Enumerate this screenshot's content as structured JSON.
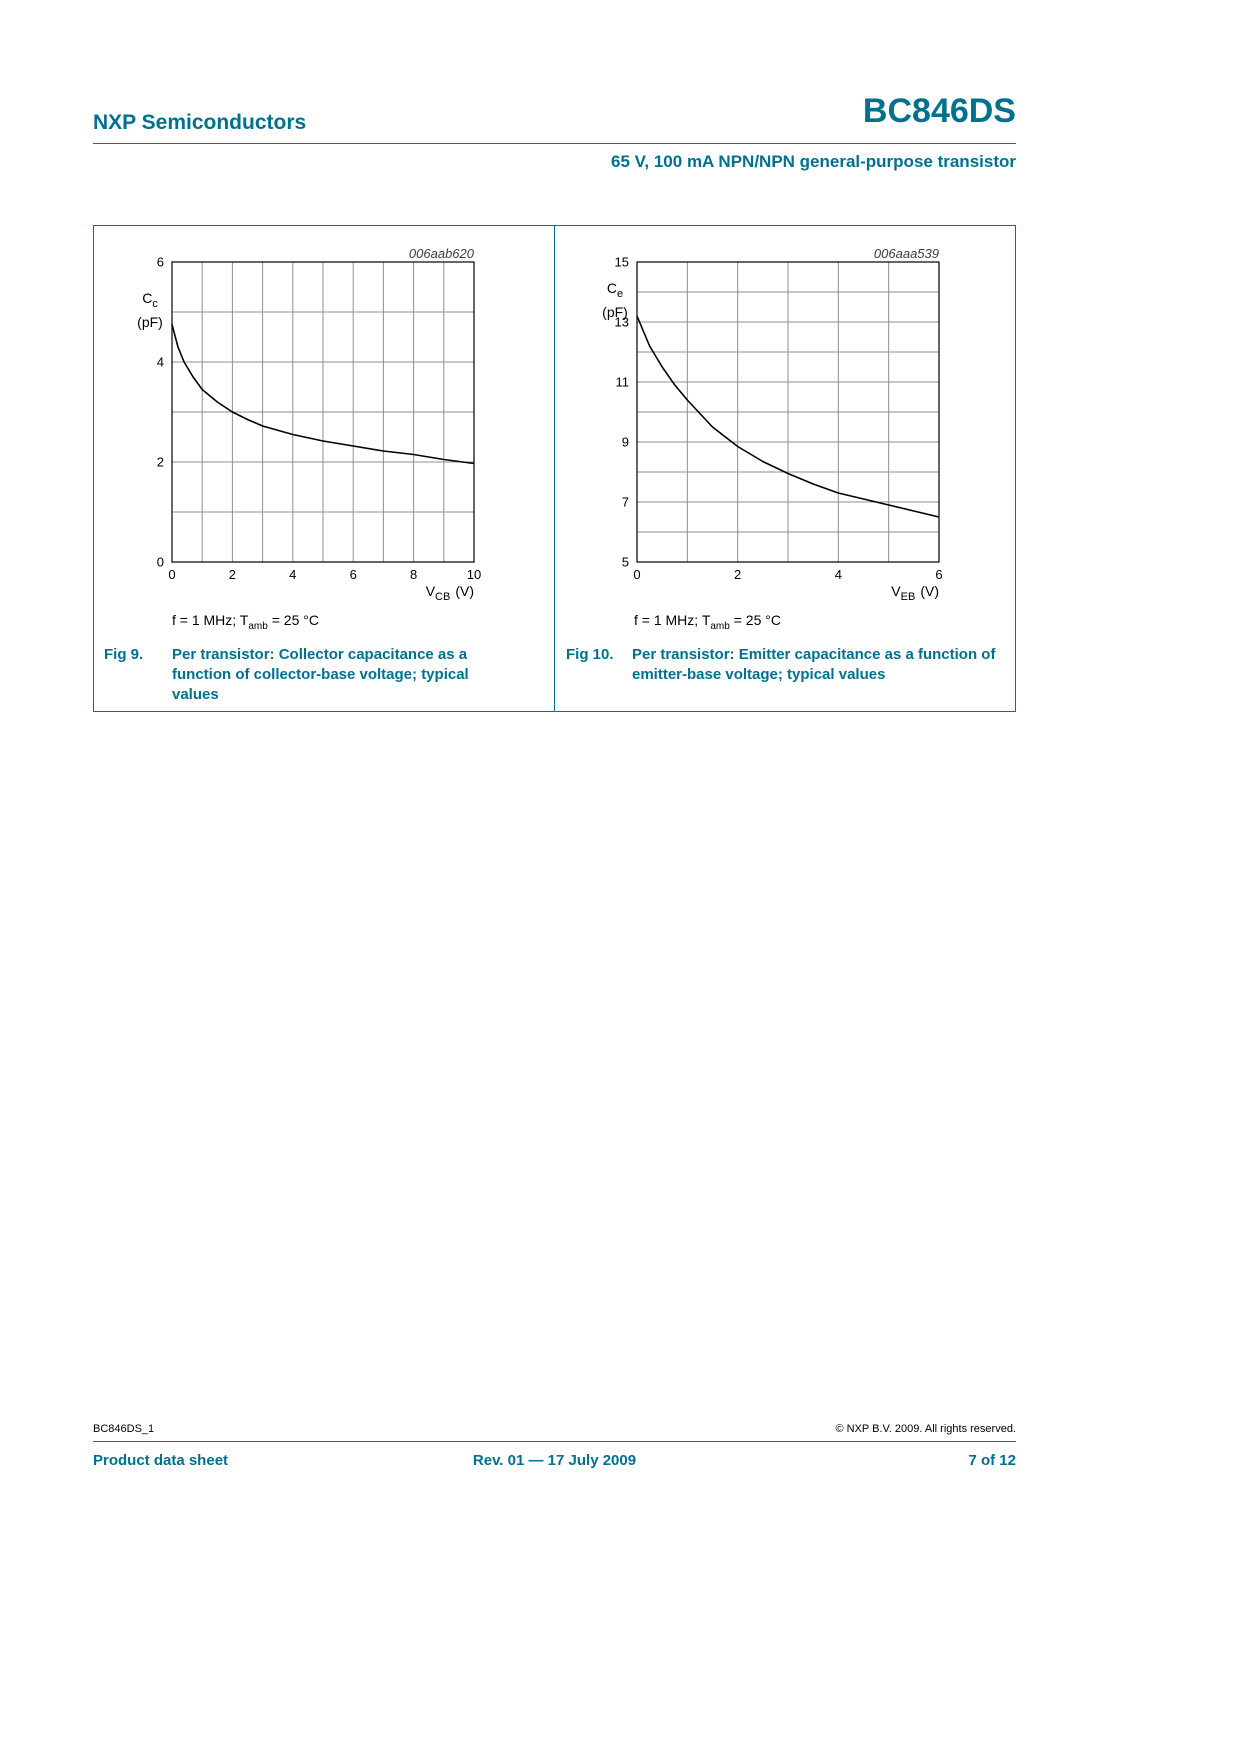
{
  "colors": {
    "accent": "#00708f",
    "chart_grid": "#8f8f8f",
    "chart_frame": "#000000",
    "chart_curve": "#000000"
  },
  "header": {
    "vendor": "NXP Semiconductors",
    "part_number": "BC846DS",
    "subtitle": "65 V, 100 mA NPN/NPN general-purpose transistor"
  },
  "figures": [
    {
      "code": "006aab620",
      "y_axis": {
        "sym": "C",
        "sub": "c",
        "unit": "(pF)"
      },
      "x_axis": {
        "sym": "V",
        "sub": "CB",
        "unit": "(V)"
      },
      "conditions": {
        "pre": "f = 1 MHz; T",
        "sub": "amb",
        "post": " = 25 °C"
      },
      "caption": {
        "label": "Fig 9.",
        "text": "Per transistor: Collector capacitance as a function of collector-base voltage; typical values"
      }
    },
    {
      "code": "006aaa539",
      "y_axis": {
        "sym": "C",
        "sub": "e",
        "unit": "(pF)"
      },
      "x_axis": {
        "sym": "V",
        "sub": "EB",
        "unit": "(V)"
      },
      "conditions": {
        "pre": "f = 1 MHz; T",
        "sub": "amb",
        "post": " = 25 °C"
      },
      "caption": {
        "label": "Fig 10.",
        "text": "Per transistor: Emitter capacitance as a function of emitter-base voltage; typical values"
      }
    }
  ],
  "chart_data": [
    {
      "type": "line",
      "title": "Per transistor: Collector capacitance as a function of collector-base voltage; typical values",
      "plot_code": "006aab620",
      "xlabel": "VCB (V)",
      "ylabel": "Cc (pF)",
      "conditions": "f = 1 MHz; Tamb = 25 °C",
      "xlim": [
        0,
        10
      ],
      "ylim": [
        0,
        6
      ],
      "x_ticks": [
        0,
        2,
        4,
        6,
        8,
        10
      ],
      "y_ticks": [
        0,
        2,
        4,
        6
      ],
      "x_grid_step": 1,
      "y_grid_step": 1,
      "grid": true,
      "legend": false,
      "x": [
        0,
        0.2,
        0.4,
        0.7,
        1,
        1.5,
        2,
        2.5,
        3,
        4,
        5,
        6,
        7,
        8,
        9,
        10
      ],
      "y": [
        4.75,
        4.3,
        4.0,
        3.7,
        3.45,
        3.2,
        3.0,
        2.85,
        2.72,
        2.55,
        2.42,
        2.32,
        2.22,
        2.15,
        2.05,
        1.97
      ]
    },
    {
      "type": "line",
      "title": "Per transistor: Emitter capacitance as a function of emitter-base voltage; typical values",
      "plot_code": "006aaa539",
      "xlabel": "VEB (V)",
      "ylabel": "Ce (pF)",
      "conditions": "f = 1 MHz; Tamb = 25 °C",
      "xlim": [
        0,
        6
      ],
      "ylim": [
        5,
        15
      ],
      "x_ticks": [
        0,
        2,
        4,
        6
      ],
      "y_ticks": [
        5,
        7,
        9,
        11,
        13,
        15
      ],
      "x_grid_step": 1,
      "y_grid_step": 1,
      "grid": true,
      "legend": false,
      "x": [
        0,
        0.25,
        0.5,
        0.75,
        1,
        1.5,
        2,
        2.5,
        3,
        3.5,
        4,
        4.5,
        5,
        5.5,
        6
      ],
      "y": [
        13.2,
        12.2,
        11.5,
        10.9,
        10.4,
        9.5,
        8.85,
        8.35,
        7.95,
        7.6,
        7.3,
        7.1,
        6.9,
        6.7,
        6.5
      ]
    }
  ],
  "footer": {
    "doc_id": "BC846DS_1",
    "copyright": "© NXP B.V. 2009. All rights reserved.",
    "doc_type": "Product data sheet",
    "revision": "Rev. 01 — 17 July 2009",
    "page_info": "7 of 12"
  }
}
